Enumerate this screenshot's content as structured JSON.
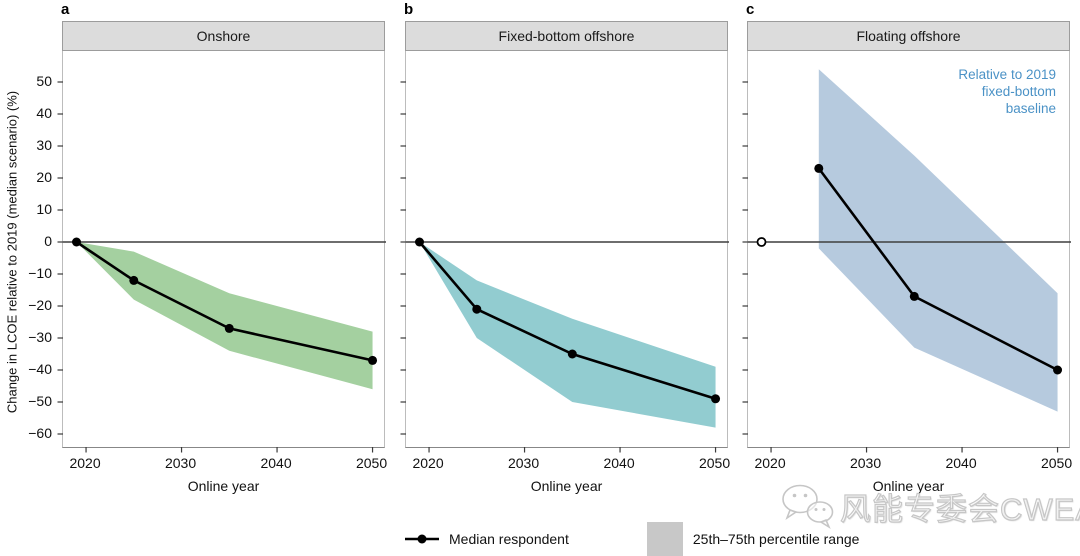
{
  "figure": {
    "y_axis_title": "Change in LCOE relative to 2019 (median scenario) (%)",
    "x_axis_title": "Online year",
    "colors": {
      "onshore_band": "#a4d0a0",
      "fixed_band": "#92ccd0",
      "floating_band": "#b6cade",
      "annotation_blue": "#4b92c6",
      "header_gray": "#dcdcdc",
      "legend_box_gray": "#c8c8c8",
      "median_line": "#000000",
      "zero_line": "#3f3f3f"
    }
  },
  "chart_data": [
    {
      "type": "line",
      "panel_label": "a",
      "title": "Onshore",
      "xlabel": "Online year",
      "xticks": [
        2020,
        2030,
        2040,
        2050
      ],
      "yticks": [
        50,
        40,
        30,
        20,
        10,
        0,
        -10,
        -20,
        -30,
        -40,
        -50,
        -60
      ],
      "ylim": [
        -64,
        60
      ],
      "xlim": [
        2017.6,
        2051.4
      ],
      "median": {
        "name": "Median respondent",
        "x": [
          2019,
          2025,
          2035,
          2050
        ],
        "values": [
          0,
          -12,
          -27,
          -37
        ],
        "first_marker": "filled"
      },
      "band": {
        "name": "25th–75th percentile range",
        "x": [
          2019,
          2025,
          2035,
          2050
        ],
        "lower": [
          0,
          -18,
          -34,
          -46
        ],
        "upper": [
          0,
          -3,
          -16,
          -28
        ],
        "color": "#a4d0a0"
      }
    },
    {
      "type": "line",
      "panel_label": "b",
      "title": "Fixed-bottom offshore",
      "xlabel": "Online year",
      "xticks": [
        2020,
        2030,
        2040,
        2050
      ],
      "yticks": [
        50,
        40,
        30,
        20,
        10,
        0,
        -10,
        -20,
        -30,
        -40,
        -50,
        -60
      ],
      "ylim": [
        -64,
        60
      ],
      "xlim": [
        2017.6,
        2051.4
      ],
      "median": {
        "name": "Median respondent",
        "x": [
          2019,
          2025,
          2035,
          2050
        ],
        "values": [
          0,
          -21,
          -35,
          -49
        ],
        "first_marker": "filled"
      },
      "band": {
        "name": "25th–75th percentile range",
        "x": [
          2019,
          2025,
          2035,
          2050
        ],
        "lower": [
          0,
          -30,
          -50,
          -58
        ],
        "upper": [
          0,
          -12,
          -24,
          -39
        ],
        "color": "#92ccd0"
      }
    },
    {
      "type": "line",
      "panel_label": "c",
      "title": "Floating offshore",
      "xlabel": "Online year",
      "annotation": "Relative to 2019\nfixed-bottom\nbaseline",
      "xticks": [
        2020,
        2030,
        2040,
        2050
      ],
      "yticks": [
        50,
        40,
        30,
        20,
        10,
        0,
        -10,
        -20,
        -30,
        -40,
        -50,
        -60
      ],
      "ylim": [
        -64,
        60
      ],
      "xlim": [
        2017.6,
        2051.4
      ],
      "median": {
        "name": "Median respondent",
        "x": [
          2025,
          2035,
          2050
        ],
        "values": [
          23,
          -17,
          -40
        ]
      },
      "baseline_marker": {
        "x": 2019,
        "value": 0,
        "style": "open-circle"
      },
      "band": {
        "name": "25th–75th percentile range",
        "x": [
          2025,
          2035,
          2050
        ],
        "lower": [
          -2,
          -33,
          -53
        ],
        "upper": [
          54,
          27,
          -16
        ],
        "color": "#b6cade"
      }
    }
  ],
  "legend": {
    "items": [
      {
        "symbol": "line-dot",
        "label": "Median respondent"
      },
      {
        "symbol": "gray-band",
        "label": "25th–75th percentile range",
        "color": "#c8c8c8"
      }
    ]
  },
  "watermark": {
    "icon": "wechat-icon",
    "text": "风能专委会CWEA"
  }
}
